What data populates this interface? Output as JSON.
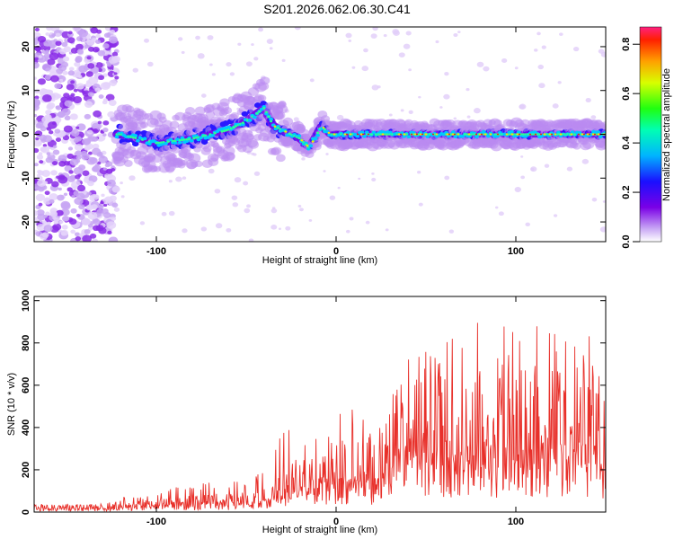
{
  "title": "S201.2026.062.06.30.C41",
  "spectrogram": {
    "xlabel": "Height of straight line (km)",
    "ylabel": "Frequency (Hz)",
    "xlim": [
      -168,
      150
    ],
    "ylim": [
      -24.5,
      24.5
    ],
    "xticks": [
      -100,
      0,
      100
    ],
    "yticks": [
      20,
      10,
      0,
      -10,
      -20
    ],
    "colorbar": {
      "label": "Normalized spectral amplitude",
      "range": [
        0,
        0.87
      ],
      "ticks": [
        0.0,
        0.2,
        0.4,
        0.6,
        0.8
      ],
      "tick_labels": [
        "0.0",
        "0.2",
        "0.4",
        "0.6",
        "0.8"
      ]
    }
  },
  "chart_data": [
    {
      "type": "heatmap",
      "title": "S201.2026.062.06.30.C41",
      "xlabel": "Height of straight line (km)",
      "ylabel": "Frequency (Hz)",
      "xlim": [
        -168,
        150
      ],
      "ylim": [
        -24.5,
        24.5
      ],
      "colorbar_label": "Normalized spectral amplitude",
      "colorbar_range": [
        0,
        0.87
      ],
      "ridge_frequency_track": {
        "x": [
          -120,
          -100,
          -80,
          -60,
          -50,
          -40,
          -35,
          -30,
          -25,
          -20,
          -15,
          -12,
          -8,
          -6,
          -3,
          0,
          10,
          50,
          100,
          150
        ],
        "y": [
          0,
          -2,
          -1,
          1,
          3,
          6,
          2,
          1,
          0,
          -1,
          -3,
          -1,
          2,
          1,
          0,
          0,
          0,
          0,
          0,
          0
        ]
      },
      "noise_region_x": [
        -168,
        -122
      ]
    },
    {
      "type": "line",
      "xlabel": "Height of straight line (km)",
      "ylabel": "SNR (10 * v/v)",
      "xlim": [
        -168,
        150
      ],
      "ylim": [
        0,
        1020
      ],
      "xticks": [
        -100,
        0,
        100
      ],
      "yticks": [
        0,
        200,
        400,
        600,
        800,
        1000
      ],
      "series_color": "#e8302a",
      "envelope": {
        "x": [
          -168,
          -130,
          -110,
          -80,
          -60,
          -45,
          -35,
          -30,
          -20,
          -10,
          0,
          10,
          20,
          30,
          35,
          40,
          50,
          60,
          70,
          80,
          90,
          100,
          110,
          120,
          130,
          140,
          150
        ],
        "typical": [
          25,
          25,
          40,
          55,
          60,
          70,
          90,
          150,
          180,
          220,
          220,
          260,
          230,
          260,
          430,
          450,
          460,
          450,
          470,
          450,
          450,
          450,
          450,
          440,
          430,
          440,
          430
        ],
        "peak": [
          40,
          40,
          90,
          130,
          150,
          170,
          290,
          400,
          380,
          420,
          500,
          520,
          400,
          480,
          760,
          720,
          760,
          860,
          1020,
          920,
          880,
          940,
          920,
          840,
          880,
          860,
          560
        ]
      }
    }
  ]
}
